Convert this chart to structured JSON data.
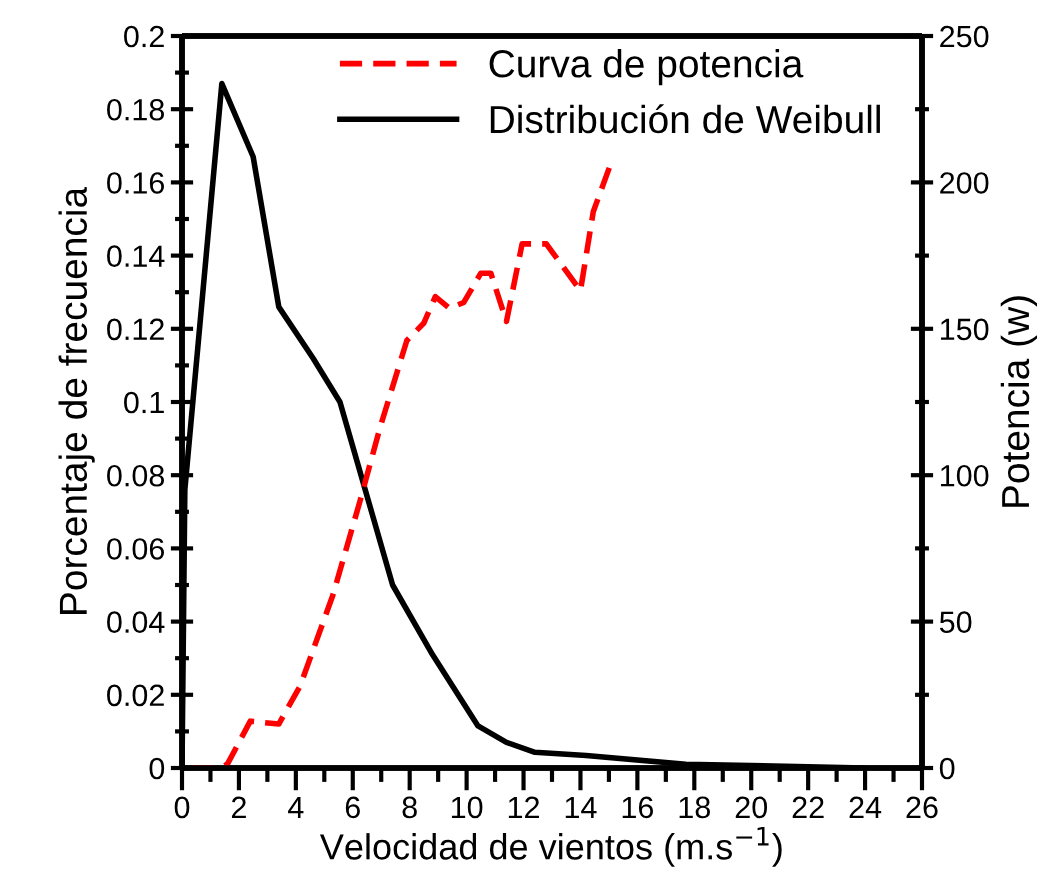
{
  "chart_data": {
    "type": "line",
    "xlabel": "Velocidad de vientos (m.s$^{−1}$)",
    "ylabel": "Porcentaje de frecuencia",
    "y2label": "Potencia (w)",
    "xlim": [
      0,
      26
    ],
    "xticks": [
      0,
      2,
      4,
      6,
      8,
      10,
      12,
      14,
      16,
      18,
      20,
      22,
      24,
      26
    ],
    "ylim": [
      0,
      0.2
    ],
    "yticks": [
      0,
      0.02,
      0.04,
      0.06,
      0.08,
      0.1,
      0.12,
      0.14,
      0.16,
      0.18,
      0.2
    ],
    "y2lim": [
      0,
      250
    ],
    "y2ticks": [
      0,
      50,
      100,
      150,
      200,
      250
    ],
    "legend": "top",
    "grid": false,
    "marker": "none",
    "series": [
      {
        "name": "Curva de potencia",
        "color": "#ff0000",
        "axis": "y2",
        "line_style": "dashed",
        "x": [
          0.35,
          1.35,
          1.6,
          2.4,
          3.4,
          4.15,
          5.3,
          6.25,
          6.95,
          7.9,
          8.5,
          8.9,
          9.4,
          9.9,
          10.5,
          10.85,
          11.4,
          11.95,
          12.8,
          14.0,
          14.45,
          15.05
        ],
        "values": [
          0,
          0,
          1.4,
          16,
          15,
          28,
          59,
          91,
          116,
          146,
          152,
          161,
          157,
          159,
          169,
          169,
          152.5,
          179,
          179,
          163,
          190,
          206
        ]
      },
      {
        "name": "Distribución de Weibull",
        "color": "#000000",
        "line_style": "solid",
        "x": [
          0,
          0.1,
          1.4,
          2.5,
          3.4,
          4.6,
          5.55,
          7.4,
          8.8,
          10.4,
          11.4,
          12.4,
          14.2,
          17.7,
          21.2,
          23.9
        ],
        "values": [
          0,
          0.076,
          0.187,
          0.167,
          0.126,
          0.112,
          0.1,
          0.05,
          0.031,
          0.0115,
          0.007,
          0.0043,
          0.0034,
          0.001,
          0.0005,
          0
        ]
      }
    ]
  }
}
